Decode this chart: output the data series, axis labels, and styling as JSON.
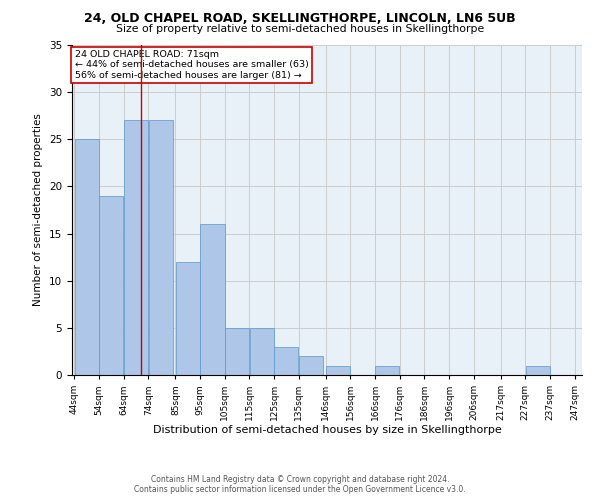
{
  "title1": "24, OLD CHAPEL ROAD, SKELLINGTHORPE, LINCOLN, LN6 5UB",
  "title2": "Size of property relative to semi-detached houses in Skellingthorpe",
  "xlabel": "Distribution of semi-detached houses by size in Skellingthorpe",
  "ylabel": "Number of semi-detached properties",
  "footer1": "Contains HM Land Registry data © Crown copyright and database right 2024.",
  "footer2": "Contains public sector information licensed under the Open Government Licence v3.0.",
  "annotation_line1": "24 OLD CHAPEL ROAD: 71sqm",
  "annotation_line2": "← 44% of semi-detached houses are smaller (63)",
  "annotation_line3": "56% of semi-detached houses are larger (81) →",
  "property_size": 71,
  "bar_left_edges": [
    44,
    54,
    64,
    74,
    85,
    95,
    105,
    115,
    125,
    135,
    146,
    156,
    166,
    176,
    186,
    196,
    206,
    217,
    227,
    237
  ],
  "bar_widths": [
    10,
    10,
    10,
    10,
    10,
    10,
    10,
    10,
    10,
    10,
    10,
    10,
    10,
    10,
    10,
    10,
    10,
    10,
    10,
    10
  ],
  "bar_heights": [
    25,
    19,
    27,
    27,
    12,
    16,
    5,
    5,
    3,
    2,
    1,
    0,
    1,
    0,
    0,
    0,
    0,
    0,
    1,
    0
  ],
  "tick_labels": [
    "44sqm",
    "54sqm",
    "64sqm",
    "74sqm",
    "85sqm",
    "95sqm",
    "105sqm",
    "115sqm",
    "125sqm",
    "135sqm",
    "146sqm",
    "156sqm",
    "166sqm",
    "176sqm",
    "186sqm",
    "196sqm",
    "206sqm",
    "217sqm",
    "227sqm",
    "237sqm",
    "247sqm"
  ],
  "bar_color": "#aec6e8",
  "bar_edge_color": "#5a96c8",
  "grid_color": "#cccccc",
  "bg_color": "#e8f0f8",
  "red_line_color": "#cc0000",
  "annotation_box_color": "#ffffff",
  "annotation_box_edge": "#cc0000",
  "ylim": [
    0,
    35
  ],
  "yticks": [
    0,
    5,
    10,
    15,
    20,
    25,
    30,
    35
  ]
}
